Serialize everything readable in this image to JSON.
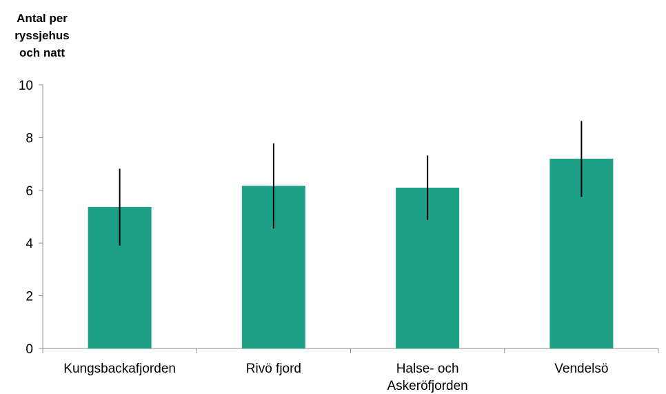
{
  "chart_data": {
    "type": "bar",
    "ylabel_lines": [
      "Antal per",
      "ryssjehus",
      "och natt"
    ],
    "categories": [
      [
        "Kungsbackafjorden"
      ],
      [
        "Rivö fjord"
      ],
      [
        "Halse- och",
        "Askeröfjorden"
      ],
      [
        "Vendelsö"
      ]
    ],
    "values": [
      5.37,
      6.17,
      6.1,
      7.2
    ],
    "error_low": [
      3.9,
      4.55,
      4.88,
      5.75
    ],
    "error_high": [
      6.82,
      7.78,
      7.32,
      8.63
    ],
    "ylim": [
      0,
      10
    ],
    "yticks": [
      "0",
      "2",
      "4",
      "6",
      "8",
      "10"
    ],
    "bar_color": "#1fa187",
    "error_color": "#000000",
    "grid": false
  }
}
